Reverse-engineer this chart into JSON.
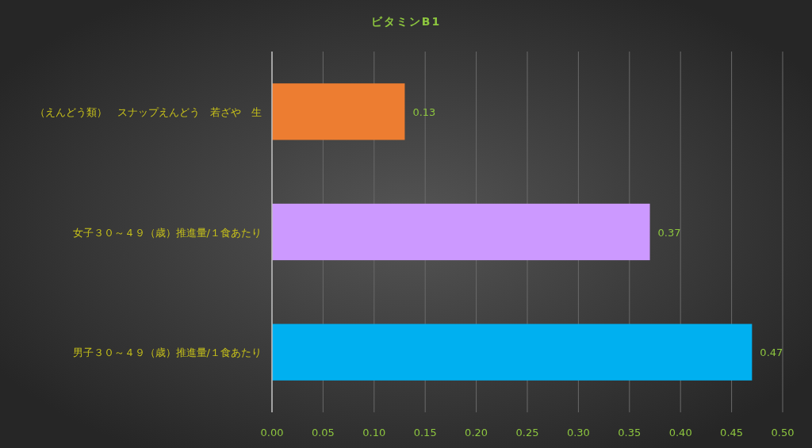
{
  "chart_data": {
    "type": "bar",
    "orientation": "horizontal",
    "title": "ビタミンB1",
    "categories": [
      "（えんどう類）　スナップえんどう　若ざや　生",
      "女子３０～４９（歳）推進量/１食あたり",
      "男子３０～４９（歳）推進量/１食あたり"
    ],
    "values": [
      0.13,
      0.37,
      0.47
    ],
    "colors": [
      "#ed7d31",
      "#cc99ff",
      "#00b0f0"
    ],
    "xlim": [
      0,
      0.5
    ],
    "xticks": [
      {
        "value": 0,
        "label": "0.00"
      },
      {
        "value": 0.05,
        "label": "0.05"
      },
      {
        "value": 0.1,
        "label": "0.10"
      },
      {
        "value": 0.15,
        "label": "0.15"
      },
      {
        "value": 0.2,
        "label": "0.20"
      },
      {
        "value": 0.25,
        "label": "0.25"
      },
      {
        "value": 0.3,
        "label": "0.30"
      },
      {
        "value": 0.35,
        "label": "0.35"
      },
      {
        "value": 0.4,
        "label": "0.40"
      },
      {
        "value": 0.45,
        "label": "0.45"
      },
      {
        "value": 0.5,
        "label": "0.50"
      }
    ],
    "grid": "x",
    "data_labels": true
  }
}
